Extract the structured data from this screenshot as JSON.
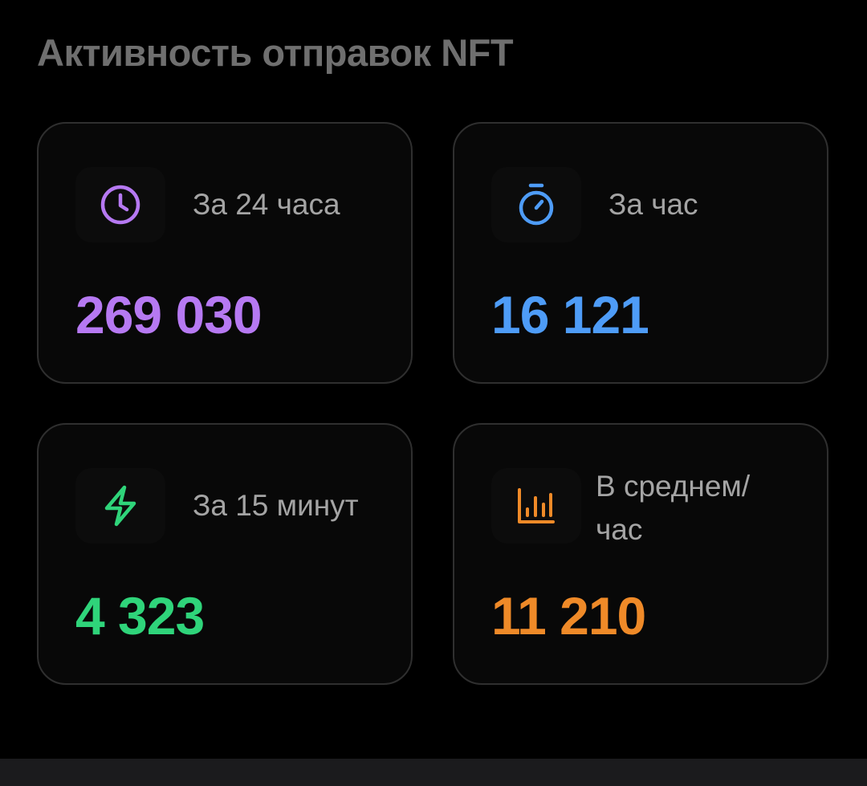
{
  "title": "Активность отправок NFT",
  "cards": [
    {
      "label": "За 24 часа",
      "value": "269 030",
      "icon": "clock-icon",
      "color": "#b679f2"
    },
    {
      "label": "За час",
      "value": "16 121",
      "icon": "stopwatch-icon",
      "color": "#4e9cf7"
    },
    {
      "label": "За 15 минут",
      "value": "4 323",
      "icon": "lightning-icon",
      "color": "#2fd47a"
    },
    {
      "label": "В среднем/ час",
      "value": "11 210",
      "icon": "bar-chart-icon",
      "color": "#ef8a28"
    }
  ]
}
